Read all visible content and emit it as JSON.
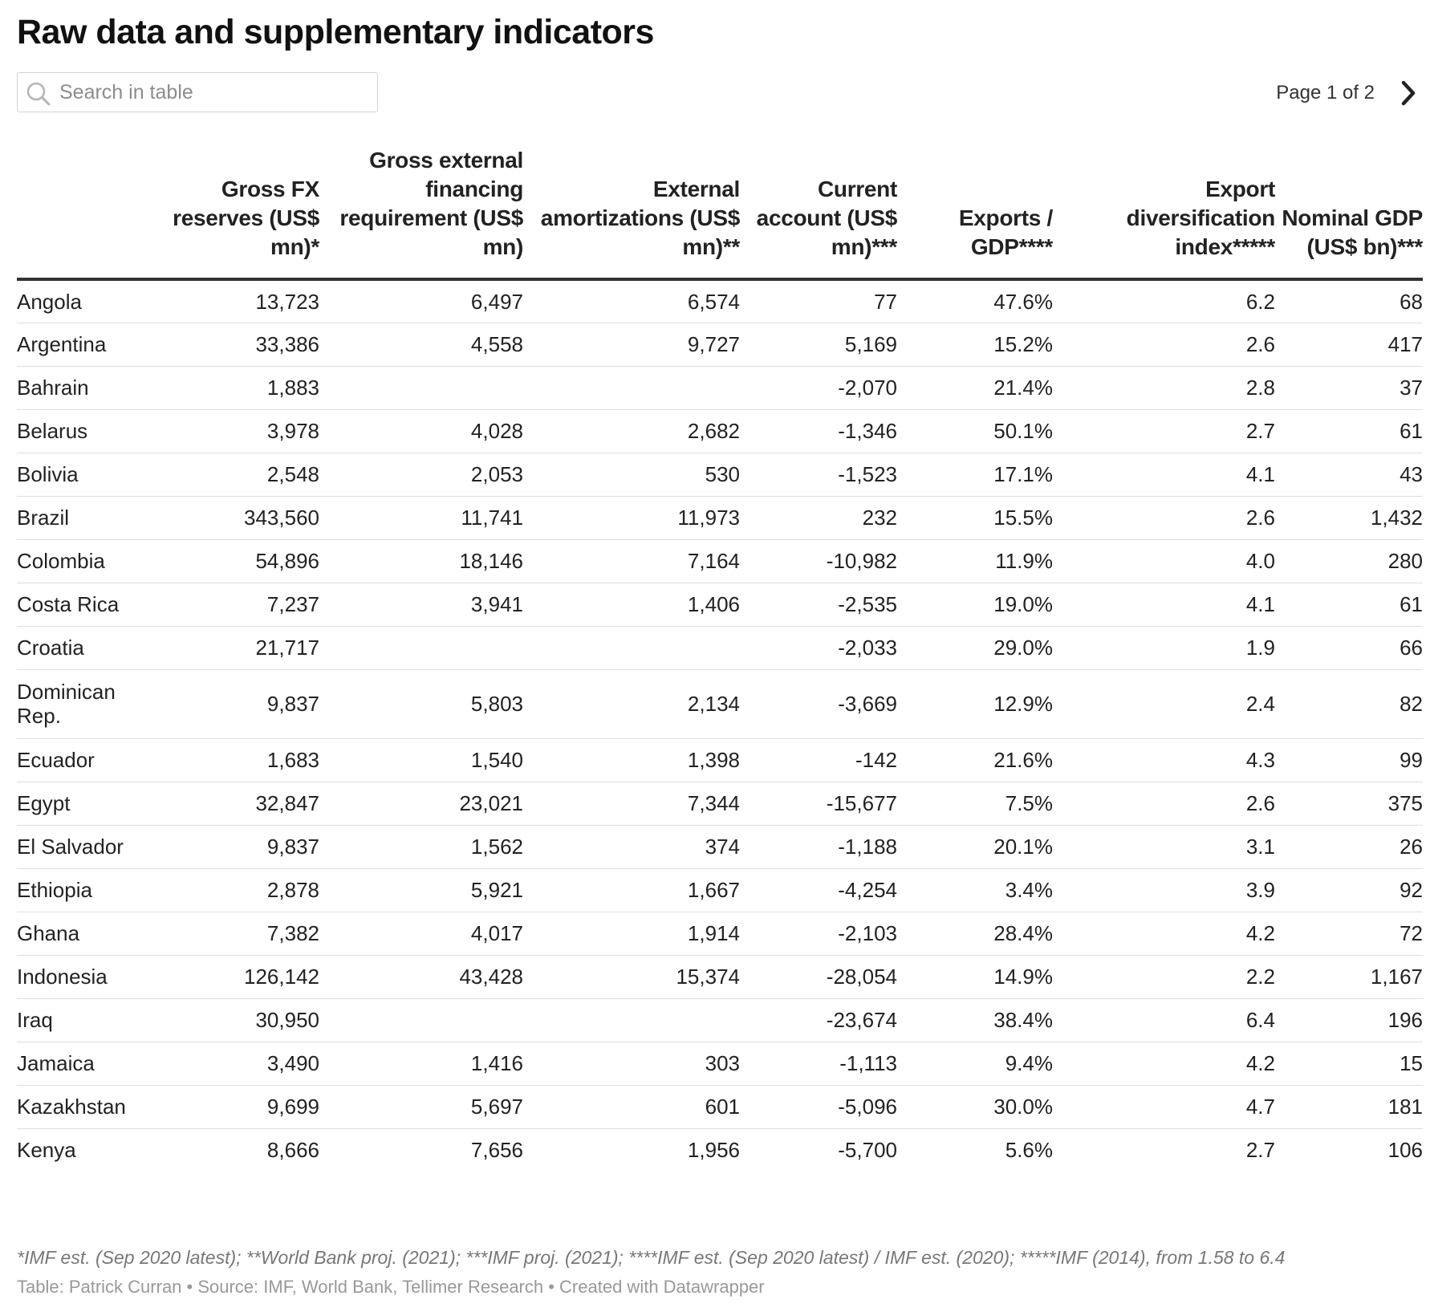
{
  "title": "Raw data and supplementary indicators",
  "search": {
    "placeholder": "Search in table"
  },
  "pager": {
    "label": "Page 1 of 2"
  },
  "columns": [
    "",
    "Gross FX reserves (US$ mn)*",
    "Gross external financing requirement (US$ mn)",
    "External amortizations (US$ mn)**",
    "Current account (US$ mn)***",
    "Exports / GDP****",
    "Export diversification index*****",
    "Nominal GDP (US$ bn)***"
  ],
  "rows": [
    [
      "Angola",
      "13,723",
      "6,497",
      "6,574",
      "77",
      "47.6%",
      "6.2",
      "68"
    ],
    [
      "Argentina",
      "33,386",
      "4,558",
      "9,727",
      "5,169",
      "15.2%",
      "2.6",
      "417"
    ],
    [
      "Bahrain",
      "1,883",
      "",
      "",
      "-2,070",
      "21.4%",
      "2.8",
      "37"
    ],
    [
      "Belarus",
      "3,978",
      "4,028",
      "2,682",
      "-1,346",
      "50.1%",
      "2.7",
      "61"
    ],
    [
      "Bolivia",
      "2,548",
      "2,053",
      "530",
      "-1,523",
      "17.1%",
      "4.1",
      "43"
    ],
    [
      "Brazil",
      "343,560",
      "11,741",
      "11,973",
      "232",
      "15.5%",
      "2.6",
      "1,432"
    ],
    [
      "Colombia",
      "54,896",
      "18,146",
      "7,164",
      "-10,982",
      "11.9%",
      "4.0",
      "280"
    ],
    [
      "Costa Rica",
      "7,237",
      "3,941",
      "1,406",
      "-2,535",
      "19.0%",
      "4.1",
      "61"
    ],
    [
      "Croatia",
      "21,717",
      "",
      "",
      "-2,033",
      "29.0%",
      "1.9",
      "66"
    ],
    [
      "Dominican Rep.",
      "9,837",
      "5,803",
      "2,134",
      "-3,669",
      "12.9%",
      "2.4",
      "82"
    ],
    [
      "Ecuador",
      "1,683",
      "1,540",
      "1,398",
      "-142",
      "21.6%",
      "4.3",
      "99"
    ],
    [
      "Egypt",
      "32,847",
      "23,021",
      "7,344",
      "-15,677",
      "7.5%",
      "2.6",
      "375"
    ],
    [
      "El Salvador",
      "9,837",
      "1,562",
      "374",
      "-1,188",
      "20.1%",
      "3.1",
      "26"
    ],
    [
      "Ethiopia",
      "2,878",
      "5,921",
      "1,667",
      "-4,254",
      "3.4%",
      "3.9",
      "92"
    ],
    [
      "Ghana",
      "7,382",
      "4,017",
      "1,914",
      "-2,103",
      "28.4%",
      "4.2",
      "72"
    ],
    [
      "Indonesia",
      "126,142",
      "43,428",
      "15,374",
      "-28,054",
      "14.9%",
      "2.2",
      "1,167"
    ],
    [
      "Iraq",
      "30,950",
      "",
      "",
      "-23,674",
      "38.4%",
      "6.4",
      "196"
    ],
    [
      "Jamaica",
      "3,490",
      "1,416",
      "303",
      "-1,113",
      "9.4%",
      "4.2",
      "15"
    ],
    [
      "Kazakhstan",
      "9,699",
      "5,697",
      "601",
      "-5,096",
      "30.0%",
      "4.7",
      "181"
    ],
    [
      "Kenya",
      "8,666",
      "7,656",
      "1,956",
      "-5,700",
      "5.6%",
      "2.7",
      "106"
    ]
  ],
  "notes": "*IMF est. (Sep 2020 latest); **World Bank proj. (2021); ***IMF proj. (2021); ****IMF est. (Sep 2020 latest) / IMF est. (2020); *****IMF (2014), from 1.58 to 6.4",
  "source": "Table: Patrick Curran • Source: IMF, World Bank, Tellimer Research • Created with Datawrapper"
}
